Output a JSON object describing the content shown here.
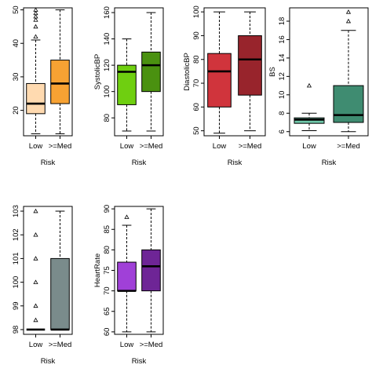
{
  "chart_data": [
    {
      "type": "boxplot",
      "ylabel": "",
      "xlabel": "Risk",
      "categories": [
        "Low",
        ">=Med"
      ],
      "yticks": [
        20,
        30,
        40,
        50
      ],
      "ylim": [
        12.4,
        50.6
      ],
      "boxes": [
        {
          "whisker_low": 13,
          "q1": 19,
          "median": 22,
          "q3": 28,
          "whisker_high": 41,
          "outliers": [
            42,
            45,
            47,
            48,
            49,
            50
          ],
          "color": "#FFDAB0"
        },
        {
          "whisker_low": 13,
          "q1": 22,
          "median": 28,
          "q3": 35,
          "whisker_high": 50,
          "outliers": [],
          "color": "#F7A233"
        }
      ]
    },
    {
      "type": "boxplot",
      "ylabel": "SystolicBP",
      "xlabel": "Risk",
      "categories": [
        "Low",
        ">=Med"
      ],
      "yticks": [
        80,
        100,
        120,
        140,
        160
      ],
      "ylim": [
        66.4,
        163.6
      ],
      "boxes": [
        {
          "whisker_low": 70,
          "q1": 90,
          "median": 115,
          "q3": 120,
          "whisker_high": 140,
          "outliers": [],
          "color": "#6FCF10"
        },
        {
          "whisker_low": 70,
          "q1": 100,
          "median": 120,
          "q3": 130,
          "whisker_high": 160,
          "outliers": [],
          "color": "#4A9110"
        }
      ]
    },
    {
      "type": "boxplot",
      "ylabel": "DiastolicBP",
      "xlabel": "Risk",
      "categories": [
        "Low",
        ">=Med"
      ],
      "yticks": [
        50,
        60,
        70,
        80,
        90,
        100
      ],
      "ylim": [
        47.9,
        101.7
      ],
      "boxes": [
        {
          "whisker_low": 49,
          "q1": 60,
          "median": 75,
          "q3": 82.5,
          "whisker_high": 100,
          "outliers": [],
          "color": "#D0343C"
        },
        {
          "whisker_low": 50,
          "q1": 65,
          "median": 80,
          "q3": 90,
          "whisker_high": 100,
          "outliers": [],
          "color": "#98242C"
        }
      ]
    },
    {
      "type": "boxplot",
      "ylabel": "BS",
      "xlabel": "Risk",
      "categories": [
        "Low",
        ">=Med"
      ],
      "yticks": [
        6,
        8,
        10,
        12,
        14,
        16,
        18
      ],
      "ylim": [
        5.55,
        19.45
      ],
      "boxes": [
        {
          "whisker_low": 6.1,
          "q1": 6.9,
          "median": 7.3,
          "q3": 7.5,
          "whisker_high": 8,
          "outliers": [
            11
          ],
          "color": "#6FC7A9"
        },
        {
          "whisker_low": 6,
          "q1": 7,
          "median": 7.8,
          "q3": 11,
          "whisker_high": 17,
          "outliers": [
            18,
            19
          ],
          "color": "#3F8C71"
        }
      ]
    },
    {
      "type": "boxplot",
      "ylabel": "",
      "xlabel": "Risk",
      "categories": [
        "Low",
        ">=Med"
      ],
      "yticks": [
        98,
        99,
        100,
        101,
        102,
        103
      ],
      "ylim": [
        97.8,
        103.2
      ],
      "boxes": [
        {
          "whisker_low": 98,
          "q1": 98,
          "median": 98,
          "q3": 98,
          "whisker_high": 98,
          "outliers": [
            98.4,
            99,
            100,
            101,
            102,
            103
          ],
          "color": "#B9C2C2"
        },
        {
          "whisker_low": 98,
          "q1": 98,
          "median": 98,
          "q3": 101,
          "whisker_high": 103,
          "outliers": [],
          "color": "#7A8B8B"
        }
      ]
    },
    {
      "type": "boxplot",
      "ylabel": "HeartRate",
      "xlabel": "Risk",
      "categories": [
        "Low",
        ">=Med"
      ],
      "yticks": [
        60,
        65,
        70,
        75,
        80,
        85,
        90
      ],
      "ylim": [
        59.4,
        90.6
      ],
      "boxes": [
        {
          "whisker_low": 60,
          "q1": 70,
          "median": 70,
          "q3": 77,
          "whisker_high": 86,
          "outliers": [
            88
          ],
          "color": "#A040D8"
        },
        {
          "whisker_low": 60,
          "q1": 70,
          "median": 76,
          "q3": 80,
          "whisker_high": 90,
          "outliers": [],
          "color": "#6E2596"
        }
      ]
    }
  ]
}
